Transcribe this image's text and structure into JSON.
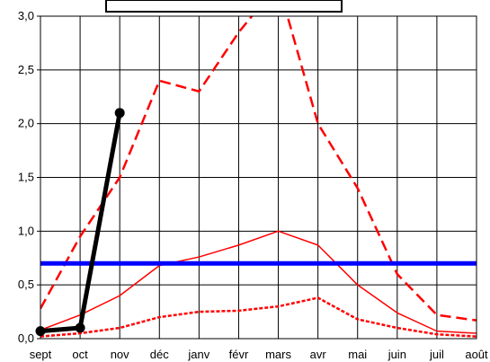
{
  "chart_data": {
    "type": "line",
    "title": "",
    "xlabel": "",
    "ylabel": "",
    "categories": [
      "sept",
      "oct",
      "nov",
      "déc",
      "janv",
      "févr",
      "mars",
      "avr",
      "mai",
      "juin",
      "juil",
      "août"
    ],
    "ylim": [
      0,
      3.0
    ],
    "yticks": [
      "0,0",
      "0,5",
      "1,0",
      "1,5",
      "2,0",
      "2,5",
      "3,0"
    ],
    "grid": true,
    "legend": "none",
    "series": [
      {
        "values": [
          0.28,
          0.95,
          1.5,
          2.4,
          2.3,
          2.85,
          3.3,
          2.0,
          1.4,
          0.6,
          0.22,
          0.17
        ],
        "color": "#ff0000",
        "style": "dashed-thick"
      },
      {
        "values": [
          0.08,
          0.22,
          0.4,
          0.68,
          0.76,
          0.87,
          1.0,
          0.87,
          0.5,
          0.24,
          0.07,
          0.05
        ],
        "color": "#ff0000",
        "style": "solid-thin"
      },
      {
        "values": [
          0.02,
          0.05,
          0.1,
          0.2,
          0.25,
          0.26,
          0.3,
          0.38,
          0.18,
          0.1,
          0.04,
          0.02
        ],
        "color": "#ff0000",
        "style": "dotted"
      },
      {
        "values": [
          0.7,
          0.7,
          0.7,
          0.7,
          0.7,
          0.7,
          0.7,
          0.7,
          0.7,
          0.7,
          0.7,
          0.7
        ],
        "color": "#0000ff",
        "style": "solid-thick"
      },
      {
        "values": [
          0.07,
          0.1,
          2.1,
          null,
          null,
          null,
          null,
          null,
          null,
          null,
          null,
          null
        ],
        "color": "#000000",
        "style": "solid-markers"
      }
    ]
  }
}
